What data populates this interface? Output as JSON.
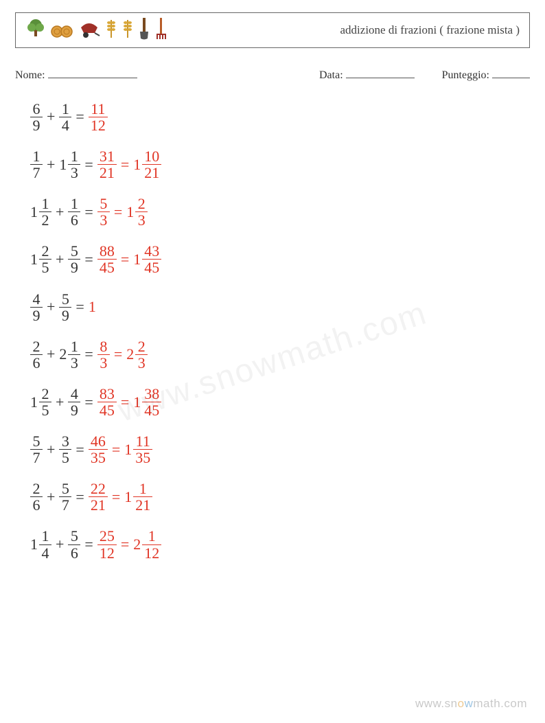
{
  "colors": {
    "text": "#333333",
    "answer": "#e03424",
    "border": "#666666",
    "watermark": "rgba(0,0,0,0.22)"
  },
  "header": {
    "icons": [
      "🌳",
      "🍩",
      "🍲",
      "🌾",
      "🌾",
      "🟫",
      "�ický"
    ],
    "title": "addizione di frazioni ( frazione mista )"
  },
  "info": {
    "name_label": "Nome:",
    "date_label": "Data:",
    "score_label": "Punteggio:"
  },
  "font": {
    "body_size": 22,
    "header_size": 17,
    "info_size": 16
  },
  "symbols": {
    "plus": "+",
    "equals": "="
  },
  "problems": [
    {
      "a": {
        "n": 6,
        "d": 9
      },
      "b": {
        "n": 1,
        "d": 4
      },
      "ans": [
        {
          "n": 11,
          "d": 12
        }
      ]
    },
    {
      "a": {
        "n": 1,
        "d": 7
      },
      "b": {
        "w": 1,
        "n": 1,
        "d": 3
      },
      "ans": [
        {
          "n": 31,
          "d": 21
        },
        {
          "w": 1,
          "n": 10,
          "d": 21
        }
      ]
    },
    {
      "a": {
        "w": 1,
        "n": 1,
        "d": 2
      },
      "b": {
        "n": 1,
        "d": 6
      },
      "ans": [
        {
          "n": 5,
          "d": 3
        },
        {
          "w": 1,
          "n": 2,
          "d": 3
        }
      ]
    },
    {
      "a": {
        "w": 1,
        "n": 2,
        "d": 5
      },
      "b": {
        "n": 5,
        "d": 9
      },
      "ans": [
        {
          "n": 88,
          "d": 45
        },
        {
          "w": 1,
          "n": 43,
          "d": 45
        }
      ]
    },
    {
      "a": {
        "n": 4,
        "d": 9
      },
      "b": {
        "n": 5,
        "d": 9
      },
      "ans": [
        {
          "int": 1
        }
      ]
    },
    {
      "a": {
        "n": 2,
        "d": 6
      },
      "b": {
        "w": 2,
        "n": 1,
        "d": 3
      },
      "ans": [
        {
          "n": 8,
          "d": 3
        },
        {
          "w": 2,
          "n": 2,
          "d": 3
        }
      ]
    },
    {
      "a": {
        "w": 1,
        "n": 2,
        "d": 5
      },
      "b": {
        "n": 4,
        "d": 9
      },
      "ans": [
        {
          "n": 83,
          "d": 45
        },
        {
          "w": 1,
          "n": 38,
          "d": 45
        }
      ]
    },
    {
      "a": {
        "n": 5,
        "d": 7
      },
      "b": {
        "n": 3,
        "d": 5
      },
      "ans": [
        {
          "n": 46,
          "d": 35
        },
        {
          "w": 1,
          "n": 11,
          "d": 35
        }
      ]
    },
    {
      "a": {
        "n": 2,
        "d": 6
      },
      "b": {
        "n": 5,
        "d": 7
      },
      "ans": [
        {
          "n": 22,
          "d": 21
        },
        {
          "w": 1,
          "n": 1,
          "d": 21
        }
      ]
    },
    {
      "a": {
        "w": 1,
        "n": 1,
        "d": 4
      },
      "b": {
        "n": 5,
        "d": 6
      },
      "ans": [
        {
          "n": 25,
          "d": 12
        },
        {
          "w": 2,
          "n": 1,
          "d": 12
        }
      ]
    }
  ],
  "watermark": "www.snowmath.com"
}
